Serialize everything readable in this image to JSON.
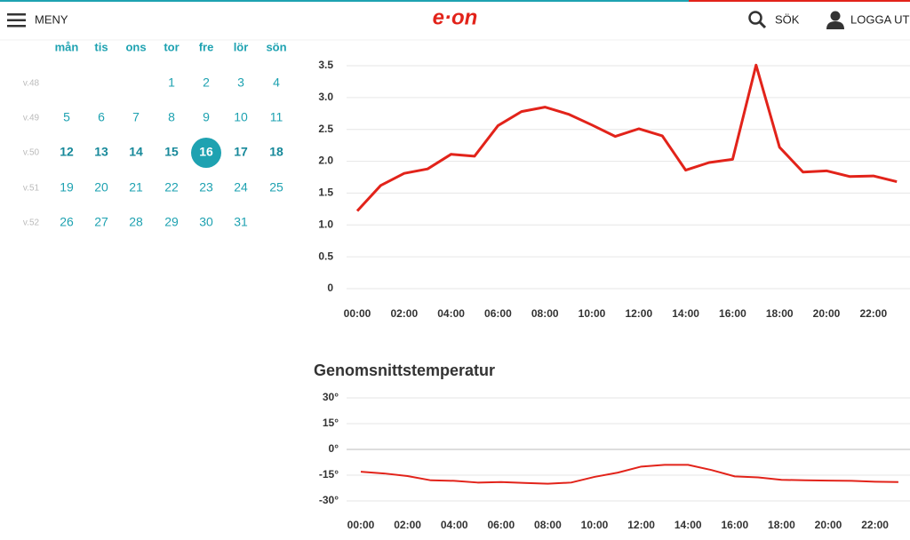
{
  "header": {
    "menu": "MENY",
    "logo": "e·on",
    "search": "SÖK",
    "logout": "LOGGA UT"
  },
  "calendar": {
    "weekdays": [
      "mån",
      "tis",
      "ons",
      "tor",
      "fre",
      "lör",
      "sön"
    ],
    "selected_day": 16,
    "weeks": [
      {
        "label": "v.48",
        "days": [
          null,
          null,
          null,
          1,
          2,
          3,
          4
        ]
      },
      {
        "label": "v.49",
        "days": [
          5,
          6,
          7,
          8,
          9,
          10,
          11
        ]
      },
      {
        "label": "v.50",
        "days": [
          12,
          13,
          14,
          15,
          16,
          17,
          18
        ]
      },
      {
        "label": "v.51",
        "days": [
          19,
          20,
          21,
          22,
          23,
          24,
          25
        ]
      },
      {
        "label": "v.52",
        "days": [
          26,
          27,
          28,
          29,
          30,
          31,
          null
        ]
      }
    ]
  },
  "chart_data": [
    {
      "type": "line",
      "categories": [
        "00:00",
        null,
        "02:00",
        null,
        "04:00",
        null,
        "06:00",
        null,
        "08:00",
        null,
        "10:00",
        null,
        "12:00",
        null,
        "14:00",
        null,
        "16:00",
        null,
        "18:00",
        null,
        "20:00",
        null,
        "22:00",
        null
      ],
      "series": [
        {
          "color": "#e2231a",
          "values": [
            1.22,
            1.62,
            1.81,
            1.88,
            2.11,
            2.08,
            2.56,
            2.78,
            2.85,
            2.74,
            2.57,
            2.39,
            2.51,
            2.4,
            1.86,
            1.98,
            2.03,
            3.51,
            2.22,
            1.83,
            1.85,
            1.76,
            1.77,
            1.68
          ]
        }
      ],
      "ylim": [
        0,
        3.5
      ],
      "yticks": [
        0,
        0.5,
        {
          "value": 1,
          "label": "1.0"
        },
        1.5,
        {
          "value": 2,
          "label": "2.0"
        },
        2.5,
        {
          "value": 3,
          "label": "3.0"
        },
        3.5
      ],
      "grid": true
    },
    {
      "type": "line",
      "title": "Genomsnittstemperatur",
      "categories": [
        "00:00",
        null,
        "02:00",
        null,
        "04:00",
        null,
        "06:00",
        null,
        "08:00",
        null,
        "10:00",
        null,
        "12:00",
        null,
        "14:00",
        null,
        "16:00",
        null,
        "18:00",
        null,
        "20:00",
        null,
        "22:00",
        null
      ],
      "series": [
        {
          "color": "#e2231a",
          "values": [
            -13,
            -14,
            -15.5,
            -18,
            -18.3,
            -19.3,
            -19,
            -19.5,
            -20,
            -19.3,
            -16,
            -13.5,
            -10,
            -9,
            -9,
            -12,
            -15.7,
            -16.3,
            -17.7,
            -18,
            -18.2,
            -18.3,
            -18.8,
            -19
          ]
        }
      ],
      "ylim": [
        -30,
        30
      ],
      "yticks": [
        {
          "value": -30,
          "label": "-30°"
        },
        {
          "value": -15,
          "label": "-15°"
        },
        {
          "value": 0,
          "label": "0°"
        },
        {
          "value": 15,
          "label": "15°"
        },
        {
          "value": 30,
          "label": "30°"
        }
      ],
      "grid": true
    }
  ]
}
